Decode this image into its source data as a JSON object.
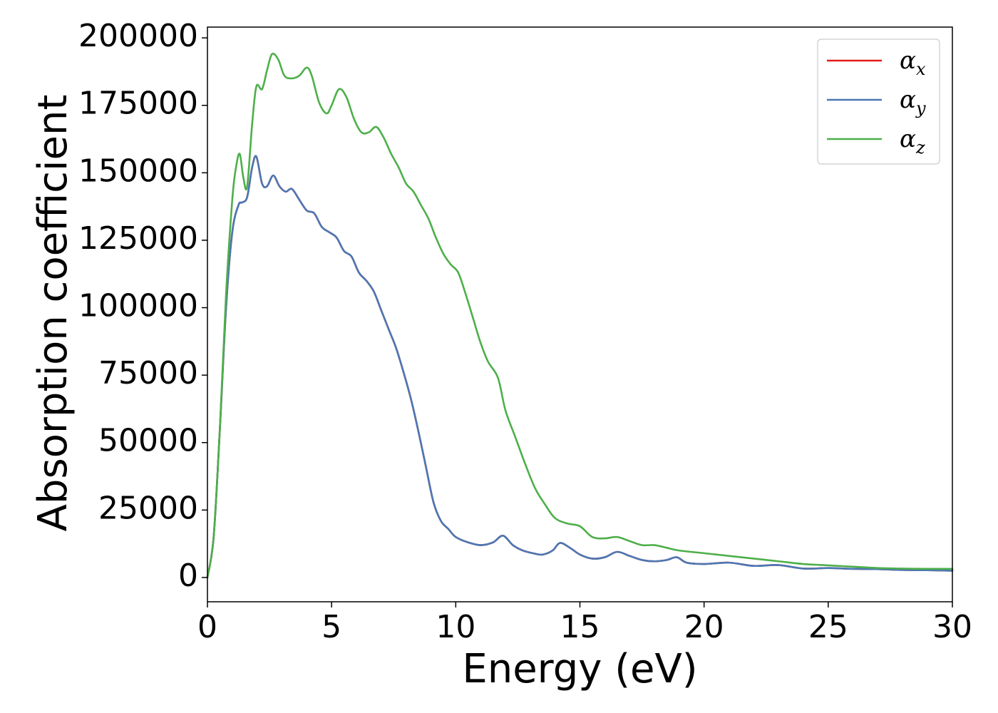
{
  "chart_data": {
    "type": "line",
    "title": "",
    "xlabel": "Energy (eV)",
    "ylabel": "Absorption coefficient",
    "xlim": [
      0,
      30
    ],
    "ylim": [
      -9000,
      204000
    ],
    "xticks": [
      0,
      5,
      10,
      15,
      20,
      25,
      30
    ],
    "yticks": [
      0,
      25000,
      50000,
      75000,
      100000,
      125000,
      150000,
      175000,
      200000
    ],
    "xtick_labels": [
      "0",
      "5",
      "10",
      "15",
      "20",
      "25",
      "30"
    ],
    "ytick_labels": [
      "0",
      "25000",
      "50000",
      "75000",
      "100000",
      "125000",
      "150000",
      "175000",
      "200000"
    ],
    "grid": false,
    "legend_position": "top-right",
    "series": [
      {
        "name": "α_x",
        "symbol": "α",
        "subscript": "x",
        "color": "#e41a1c",
        "x": [
          0,
          0.25,
          0.5,
          0.75,
          1.0,
          1.25,
          1.4,
          1.6,
          1.8,
          1.97,
          2.2,
          2.4,
          2.65,
          2.9,
          3.15,
          3.4,
          3.7,
          4.0,
          4.3,
          4.6,
          4.9,
          5.2,
          5.5,
          5.8,
          6.1,
          6.4,
          6.7,
          7.0,
          7.3,
          7.6,
          7.9,
          8.2,
          8.5,
          8.8,
          9.1,
          9.4,
          9.7,
          10.0,
          10.5,
          11.0,
          11.5,
          11.9,
          12.3,
          12.7,
          13.1,
          13.5,
          13.9,
          14.2,
          14.6,
          15.0,
          15.5,
          16.0,
          16.5,
          17.0,
          17.5,
          18.0,
          18.5,
          18.9,
          19.3,
          20.0,
          21.0,
          22.0,
          23.0,
          24.0,
          25.0,
          26.0,
          27.0,
          28.0,
          29.0,
          30.0
        ],
        "values": [
          0,
          15000,
          55000,
          100000,
          128000,
          138000,
          139000,
          141000,
          152000,
          156000,
          146000,
          145000,
          149000,
          145000,
          143000,
          144000,
          140000,
          136000,
          135000,
          130000,
          128000,
          126000,
          121000,
          119000,
          113000,
          110000,
          106000,
          99000,
          92000,
          85000,
          76000,
          66000,
          54000,
          41000,
          28000,
          21000,
          18000,
          15000,
          13000,
          12000,
          13000,
          15500,
          12000,
          10000,
          9000,
          8500,
          10000,
          12800,
          11000,
          8500,
          7000,
          7500,
          9500,
          8000,
          6500,
          6000,
          6500,
          7500,
          5500,
          5000,
          5500,
          4300,
          4600,
          3300,
          3500,
          3200,
          3100,
          2800,
          2700,
          2500
        ]
      },
      {
        "name": "α_y",
        "symbol": "α",
        "subscript": "y",
        "color": "#4a78b4",
        "x": [
          0,
          0.25,
          0.5,
          0.75,
          1.0,
          1.25,
          1.4,
          1.6,
          1.8,
          1.97,
          2.2,
          2.4,
          2.65,
          2.9,
          3.15,
          3.4,
          3.7,
          4.0,
          4.3,
          4.6,
          4.9,
          5.2,
          5.5,
          5.8,
          6.1,
          6.4,
          6.7,
          7.0,
          7.3,
          7.6,
          7.9,
          8.2,
          8.5,
          8.8,
          9.1,
          9.4,
          9.7,
          10.0,
          10.5,
          11.0,
          11.5,
          11.9,
          12.3,
          12.7,
          13.1,
          13.5,
          13.9,
          14.2,
          14.6,
          15.0,
          15.5,
          16.0,
          16.5,
          17.0,
          17.5,
          18.0,
          18.5,
          18.9,
          19.3,
          20.0,
          21.0,
          22.0,
          23.0,
          24.0,
          25.0,
          26.0,
          27.0,
          28.0,
          29.0,
          30.0
        ],
        "values": [
          0,
          15000,
          55000,
          100000,
          128000,
          138000,
          139000,
          141000,
          152000,
          156000,
          146000,
          145000,
          149000,
          145000,
          143000,
          144000,
          140000,
          136000,
          135000,
          130000,
          128000,
          126000,
          121000,
          119000,
          113000,
          110000,
          106000,
          99000,
          92000,
          85000,
          76000,
          66000,
          54000,
          41000,
          28000,
          21000,
          18000,
          15000,
          13000,
          12000,
          13000,
          15500,
          12000,
          10000,
          9000,
          8500,
          10000,
          12800,
          11000,
          8500,
          7000,
          7500,
          9500,
          8000,
          6500,
          6000,
          6500,
          7500,
          5500,
          5000,
          5500,
          4300,
          4600,
          3300,
          3500,
          3200,
          3100,
          2800,
          2700,
          2500
        ]
      },
      {
        "name": "α_z",
        "symbol": "α",
        "subscript": "z",
        "color": "#4daf4a",
        "x": [
          0,
          0.25,
          0.5,
          0.75,
          1.0,
          1.15,
          1.3,
          1.45,
          1.6,
          1.8,
          1.97,
          2.2,
          2.4,
          2.6,
          2.85,
          3.1,
          3.4,
          3.7,
          4.0,
          4.2,
          4.5,
          4.8,
          5.0,
          5.3,
          5.6,
          5.9,
          6.2,
          6.5,
          6.8,
          7.1,
          7.4,
          7.7,
          8.0,
          8.3,
          8.6,
          8.9,
          9.2,
          9.5,
          9.8,
          10.1,
          10.4,
          10.7,
          11.0,
          11.3,
          11.7,
          12.0,
          12.4,
          12.8,
          13.2,
          13.6,
          14.0,
          14.5,
          15.0,
          15.5,
          16.0,
          16.5,
          17.0,
          17.5,
          18.0,
          18.5,
          19.0,
          20.0,
          21.0,
          22.0,
          23.0,
          24.0,
          25.0,
          26.0,
          27.0,
          28.0,
          29.0,
          30.0
        ],
        "values": [
          0,
          15000,
          55000,
          105000,
          140000,
          152000,
          157000,
          148000,
          145000,
          168000,
          182000,
          181000,
          188000,
          194000,
          192000,
          186000,
          185000,
          186000,
          189000,
          186000,
          176000,
          172000,
          175000,
          181000,
          178000,
          170000,
          165000,
          165000,
          167000,
          163000,
          157000,
          152000,
          146000,
          143000,
          138000,
          133000,
          126000,
          120000,
          116000,
          113000,
          105000,
          96000,
          87000,
          80000,
          74000,
          62000,
          52000,
          42000,
          33000,
          27000,
          22000,
          20000,
          19000,
          15000,
          14500,
          15000,
          13500,
          12000,
          12000,
          11000,
          10000,
          9000,
          8000,
          7000,
          6000,
          5000,
          4500,
          4000,
          3500,
          3300,
          3200,
          3200
        ]
      }
    ]
  }
}
